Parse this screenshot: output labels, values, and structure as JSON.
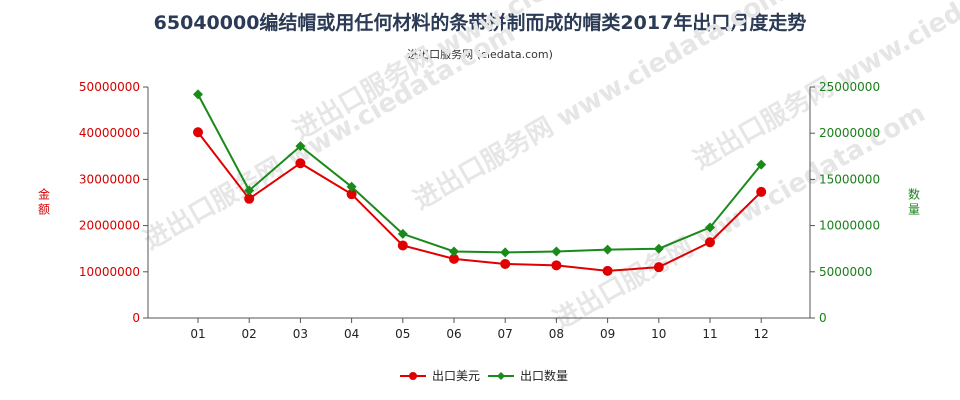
{
  "header": {
    "title": "65040000编结帽或用任何材料的条带拼制而成的帽类2017年出口月度走势",
    "subtitle": "进出口服务网 (ciedata.com)"
  },
  "watermark": "进出口服务网 www.ciedata.com",
  "colors": {
    "left_series": "#e00000",
    "right_series": "#1a8a1a",
    "left_axis": "#d40000",
    "right_axis": "#1a7f1a"
  },
  "chart_data": {
    "type": "line",
    "title": "65040000编结帽或用任何材料的条带拼制而成的帽类2017年出口月度走势",
    "categories": [
      "01",
      "02",
      "03",
      "04",
      "05",
      "06",
      "07",
      "08",
      "09",
      "10",
      "11",
      "12"
    ],
    "y_left": {
      "label": "金额",
      "lim": [
        0,
        50000000
      ],
      "ticks": [
        "0",
        "10000000",
        "20000000",
        "30000000",
        "40000000",
        "50000000"
      ]
    },
    "y_right": {
      "label": "数量",
      "lim": [
        0,
        25000000
      ],
      "ticks": [
        "0",
        "5000000",
        "10000000",
        "15000000",
        "20000000",
        "25000000"
      ]
    },
    "series": [
      {
        "name": "出口美元",
        "axis": "left",
        "values": [
          40200000,
          25800000,
          33500000,
          26800000,
          15700000,
          12800000,
          11700000,
          11400000,
          10200000,
          11000000,
          16400000,
          27300000
        ]
      },
      {
        "name": "出口数量",
        "axis": "right",
        "values": [
          24200000,
          13800000,
          18600000,
          14200000,
          9100000,
          7200000,
          7100000,
          7200000,
          7400000,
          7500000,
          9800000,
          16600000
        ]
      }
    ],
    "legend_position": "bottom-center",
    "grid": false
  }
}
